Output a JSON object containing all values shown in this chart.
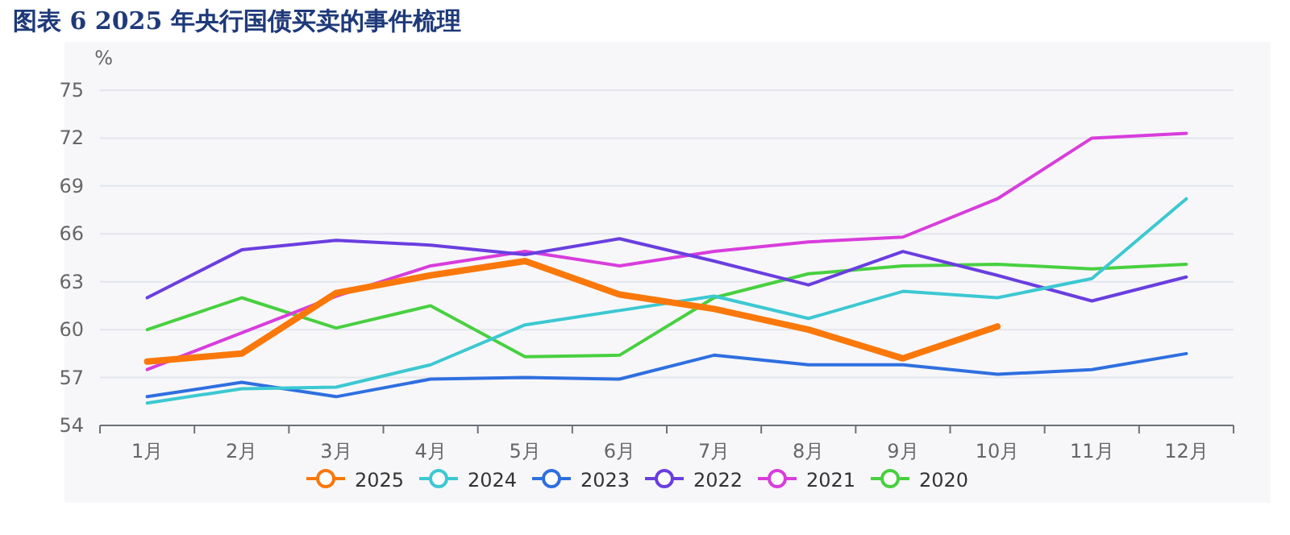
{
  "chart_data": {
    "type": "line",
    "title": "图表 6 2025 年央行国债买卖的事件梳理",
    "ylabel": "%",
    "categories": [
      "1月",
      "2月",
      "3月",
      "4月",
      "5月",
      "6月",
      "7月",
      "8月",
      "9月",
      "10月",
      "11月",
      "12月"
    ],
    "series": [
      {
        "name": "2025",
        "color": "#fa780a",
        "values": [
          58.0,
          58.5,
          62.3,
          63.4,
          64.3,
          62.2,
          61.3,
          60.0,
          58.2,
          60.2,
          null,
          null
        ]
      },
      {
        "name": "2024",
        "color": "#3cc8d2",
        "values": [
          55.4,
          56.3,
          56.4,
          57.8,
          60.3,
          61.2,
          62.1,
          60.7,
          62.4,
          62.0,
          63.2,
          68.2
        ]
      },
      {
        "name": "2023",
        "color": "#2f6fe0",
        "values": [
          55.8,
          56.7,
          55.8,
          56.9,
          57.0,
          56.9,
          58.4,
          57.8,
          57.8,
          57.2,
          57.5,
          58.5
        ]
      },
      {
        "name": "2022",
        "color": "#6a3ee0",
        "values": [
          62.0,
          65.0,
          65.6,
          65.3,
          64.7,
          65.7,
          64.3,
          62.8,
          64.9,
          63.4,
          61.8,
          63.3
        ]
      },
      {
        "name": "2021",
        "color": "#d83ddc",
        "values": [
          57.5,
          59.8,
          62.1,
          64.0,
          64.9,
          64.0,
          64.9,
          65.5,
          65.8,
          68.2,
          72.0,
          72.3
        ]
      },
      {
        "name": "2020",
        "color": "#48d040",
        "values": [
          60.0,
          62.0,
          60.1,
          61.5,
          58.3,
          58.4,
          62.0,
          63.5,
          64.0,
          64.1,
          63.8,
          64.1
        ]
      }
    ],
    "ylim": [
      54,
      75
    ],
    "yticks": [
      54,
      57,
      60,
      63,
      66,
      69,
      72,
      75
    ],
    "grid": "y",
    "legend": "bottom"
  }
}
